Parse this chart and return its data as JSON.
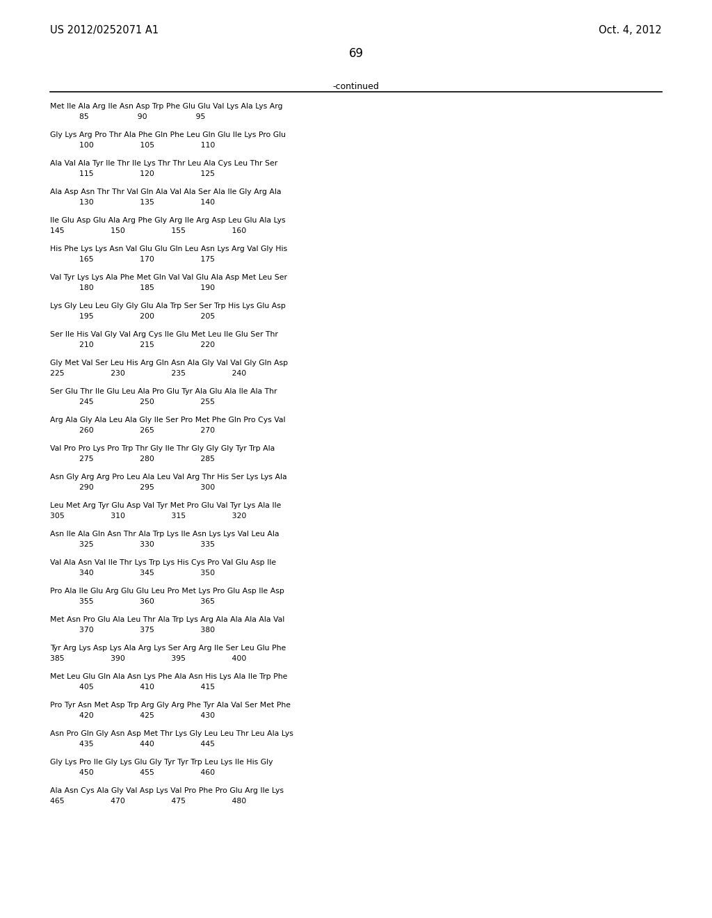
{
  "patent_left": "US 2012/0252071 A1",
  "patent_right": "Oct. 4, 2012",
  "page_number": "69",
  "continued_label": "-continued",
  "bg_color": "#ffffff",
  "text_color": "#000000",
  "line_blocks": [
    {
      "seq": "Met Ile Ala Arg Ile Asn Asp Trp Phe Glu Glu Val Lys Ala Lys Arg",
      "num": "            85                    90                    95"
    },
    {
      "seq": "Gly Lys Arg Pro Thr Ala Phe Gln Phe Leu Gln Glu Ile Lys Pro Glu",
      "num": "            100                   105                   110"
    },
    {
      "seq": "Ala Val Ala Tyr Ile Thr Ile Lys Thr Thr Leu Ala Cys Leu Thr Ser",
      "num": "            115                   120                   125"
    },
    {
      "seq": "Ala Asp Asn Thr Thr Val Gln Ala Val Ala Ser Ala Ile Gly Arg Ala",
      "num": "            130                   135                   140"
    },
    {
      "seq": "Ile Glu Asp Glu Ala Arg Phe Gly Arg Ile Arg Asp Leu Glu Ala Lys",
      "num": "145                   150                   155                   160"
    },
    {
      "seq": "His Phe Lys Lys Asn Val Glu Glu Gln Leu Asn Lys Arg Val Gly His",
      "num": "            165                   170                   175"
    },
    {
      "seq": "Val Tyr Lys Lys Ala Phe Met Gln Val Val Glu Ala Asp Met Leu Ser",
      "num": "            180                   185                   190"
    },
    {
      "seq": "Lys Gly Leu Leu Gly Gly Glu Ala Trp Ser Ser Trp His Lys Glu Asp",
      "num": "            195                   200                   205"
    },
    {
      "seq": "Ser Ile His Val Gly Val Arg Cys Ile Glu Met Leu Ile Glu Ser Thr",
      "num": "            210                   215                   220"
    },
    {
      "seq": "Gly Met Val Ser Leu His Arg Gln Asn Ala Gly Val Val Gly Gln Asp",
      "num": "225                   230                   235                   240"
    },
    {
      "seq": "Ser Glu Thr Ile Glu Leu Ala Pro Glu Tyr Ala Glu Ala Ile Ala Thr",
      "num": "            245                   250                   255"
    },
    {
      "seq": "Arg Ala Gly Ala Leu Ala Gly Ile Ser Pro Met Phe Gln Pro Cys Val",
      "num": "            260                   265                   270"
    },
    {
      "seq": "Val Pro Pro Lys Pro Trp Thr Gly Ile Thr Gly Gly Gly Tyr Trp Ala",
      "num": "            275                   280                   285"
    },
    {
      "seq": "Asn Gly Arg Arg Pro Leu Ala Leu Val Arg Thr His Ser Lys Lys Ala",
      "num": "            290                   295                   300"
    },
    {
      "seq": "Leu Met Arg Tyr Glu Asp Val Tyr Met Pro Glu Val Tyr Lys Ala Ile",
      "num": "305                   310                   315                   320"
    },
    {
      "seq": "Asn Ile Ala Gln Asn Thr Ala Trp Lys Ile Asn Lys Lys Val Leu Ala",
      "num": "            325                   330                   335"
    },
    {
      "seq": "Val Ala Asn Val Ile Thr Lys Trp Lys His Cys Pro Val Glu Asp Ile",
      "num": "            340                   345                   350"
    },
    {
      "seq": "Pro Ala Ile Glu Arg Glu Glu Leu Pro Met Lys Pro Glu Asp Ile Asp",
      "num": "            355                   360                   365"
    },
    {
      "seq": "Met Asn Pro Glu Ala Leu Thr Ala Trp Lys Arg Ala Ala Ala Ala Val",
      "num": "            370                   375                   380"
    },
    {
      "seq": "Tyr Arg Lys Asp Lys Ala Arg Lys Ser Arg Arg Ile Ser Leu Glu Phe",
      "num": "385                   390                   395                   400"
    },
    {
      "seq": "Met Leu Glu Gln Ala Asn Lys Phe Ala Asn His Lys Ala Ile Trp Phe",
      "num": "            405                   410                   415"
    },
    {
      "seq": "Pro Tyr Asn Met Asp Trp Arg Gly Arg Phe Tyr Ala Val Ser Met Phe",
      "num": "            420                   425                   430"
    },
    {
      "seq": "Asn Pro Gln Gly Asn Asp Met Thr Lys Gly Leu Leu Thr Leu Ala Lys",
      "num": "            435                   440                   445"
    },
    {
      "seq": "Gly Lys Pro Ile Gly Lys Glu Gly Tyr Tyr Trp Leu Lys Ile His Gly",
      "num": "            450                   455                   460"
    },
    {
      "seq": "Ala Asn Cys Ala Gly Val Asp Lys Val Pro Phe Pro Glu Arg Ile Lys",
      "num": "465                   470                   475                   480"
    }
  ]
}
